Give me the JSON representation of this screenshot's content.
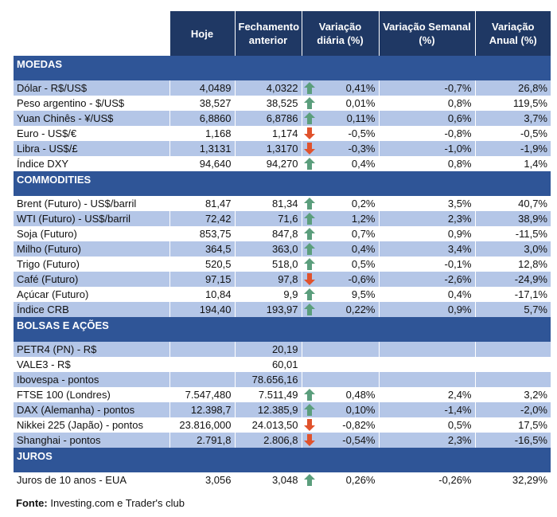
{
  "columns": [
    "",
    "Hoje",
    "Fechamento anterior",
    "Variação diária (%)",
    "Variação Semanal (%)",
    "Variação Anual (%)"
  ],
  "colors": {
    "header": "#1F3864",
    "section": "#2F5597",
    "band": "#B4C6E7",
    "up": "#5B9E7C",
    "down": "#E0522C"
  },
  "sections": [
    {
      "title": "MOEDAS",
      "rows": [
        {
          "label": "Dólar - R$/US$",
          "hoje": "4,0489",
          "fech": "4,0322",
          "trend": "up",
          "dia": "0,41%",
          "sem": "-0,7%",
          "anual": "26,8%"
        },
        {
          "label": "Peso argentino - $/US$",
          "hoje": "38,527",
          "fech": "38,525",
          "trend": "up",
          "dia": "0,01%",
          "sem": "0,8%",
          "anual": "119,5%"
        },
        {
          "label": "Yuan Chinês - ¥/US$",
          "hoje": "6,8860",
          "fech": "6,8786",
          "trend": "up",
          "dia": "0,11%",
          "sem": "0,6%",
          "anual": "3,7%"
        },
        {
          "label": "Euro - US$/€",
          "hoje": "1,168",
          "fech": "1,174",
          "trend": "down",
          "dia": "-0,5%",
          "sem": "-0,8%",
          "anual": "-0,5%"
        },
        {
          "label": "Libra - US$/£",
          "hoje": "1,3131",
          "fech": "1,3170",
          "trend": "down",
          "dia": "-0,3%",
          "sem": "-1,0%",
          "anual": "-1,9%"
        },
        {
          "label": "Índice DXY",
          "hoje": "94,640",
          "fech": "94,270",
          "trend": "up",
          "dia": "0,4%",
          "sem": "0,8%",
          "anual": "1,4%"
        }
      ]
    },
    {
      "title": "COMMODITIES",
      "rows": [
        {
          "label": "Brent (Futuro) - US$/barril",
          "hoje": "81,47",
          "fech": "81,34",
          "trend": "up",
          "dia": "0,2%",
          "sem": "3,5%",
          "anual": "40,7%"
        },
        {
          "label": "WTI (Futuro) - US$/barril",
          "hoje": "72,42",
          "fech": "71,6",
          "trend": "up",
          "dia": "1,2%",
          "sem": "2,3%",
          "anual": "38,9%"
        },
        {
          "label": "Soja (Futuro)",
          "hoje": "853,75",
          "fech": "847,8",
          "trend": "up",
          "dia": "0,7%",
          "sem": "0,9%",
          "anual": "-11,5%"
        },
        {
          "label": "Milho (Futuro)",
          "hoje": "364,5",
          "fech": "363,0",
          "trend": "up",
          "dia": "0,4%",
          "sem": "3,4%",
          "anual": "3,0%"
        },
        {
          "label": "Trigo (Futuro)",
          "hoje": "520,5",
          "fech": "518,0",
          "trend": "up",
          "dia": "0,5%",
          "sem": "-0,1%",
          "anual": "12,8%"
        },
        {
          "label": "Café (Futuro)",
          "hoje": "97,15",
          "fech": "97,8",
          "trend": "down",
          "dia": "-0,6%",
          "sem": "-2,6%",
          "anual": "-24,9%"
        },
        {
          "label": "Açúcar (Futuro)",
          "hoje": "10,84",
          "fech": "9,9",
          "trend": "up",
          "dia": "9,5%",
          "sem": "0,4%",
          "anual": "-17,1%"
        },
        {
          "label": "Índice CRB",
          "hoje": "194,40",
          "fech": "193,97",
          "trend": "up",
          "dia": "0,22%",
          "sem": "0,9%",
          "anual": "5,7%"
        }
      ]
    },
    {
      "title": "BOLSAS E AÇÕES",
      "rows": [
        {
          "label": "PETR4 (PN) - R$",
          "hoje": "",
          "fech": "20,19",
          "trend": "",
          "dia": "",
          "sem": "",
          "anual": ""
        },
        {
          "label": "VALE3 - R$",
          "hoje": "",
          "fech": "60,01",
          "trend": "",
          "dia": "",
          "sem": "",
          "anual": ""
        },
        {
          "label": "Ibovespa - pontos",
          "hoje": "",
          "fech": "78.656,16",
          "trend": "",
          "dia": "",
          "sem": "",
          "anual": ""
        },
        {
          "label": "FTSE 100 (Londres)",
          "hoje": "7.547,480",
          "fech": "7.511,49",
          "trend": "up",
          "dia": "0,48%",
          "sem": "2,4%",
          "anual": "3,2%"
        },
        {
          "label": "DAX (Alemanha) - pontos",
          "hoje": "12.398,7",
          "fech": "12.385,9",
          "trend": "up",
          "dia": "0,10%",
          "sem": "-1,4%",
          "anual": "-2,0%"
        },
        {
          "label": "Nikkei 225 (Japão) - pontos",
          "hoje": "23.816,000",
          "fech": "24.013,50",
          "trend": "down",
          "dia": "-0,82%",
          "sem": "0,5%",
          "anual": "17,5%"
        },
        {
          "label": "Shanghai - pontos",
          "hoje": "2.791,8",
          "fech": "2.806,8",
          "trend": "down",
          "dia": "-0,54%",
          "sem": "2,3%",
          "anual": "-16,5%"
        }
      ]
    },
    {
      "title": "JUROS",
      "rows": [
        {
          "label": "Juros de 10 anos - EUA",
          "hoje": "3,056",
          "fech": "3,048",
          "trend": "up",
          "dia": "0,26%",
          "sem": "-0,26%",
          "anual": "32,29%"
        }
      ]
    }
  ],
  "source": {
    "label": "Fonte:",
    "text": " Investing.com e Trader's club"
  }
}
